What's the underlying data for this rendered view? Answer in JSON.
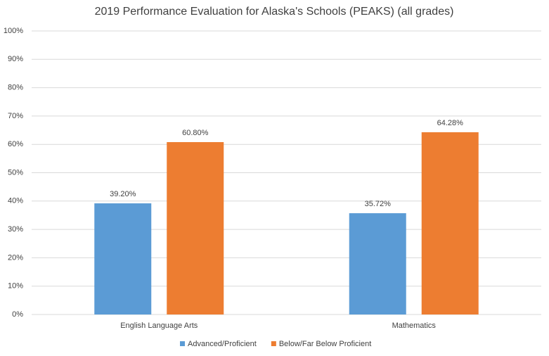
{
  "chart_data": {
    "type": "bar",
    "title": "2019 Performance Evaluation for Alaska's Schools (PEAKS)  (all grades)",
    "categories": [
      "English Language Arts",
      "Mathematics"
    ],
    "series": [
      {
        "name": "Advanced/Proficient",
        "color": "#5b9bd5",
        "values": [
          39.2,
          35.72
        ],
        "value_labels": [
          "39.20%",
          "35.72%"
        ]
      },
      {
        "name": "Below/Far Below Proficient",
        "color": "#ed7d31",
        "values": [
          60.8,
          64.28
        ],
        "value_labels": [
          "60.80%",
          "64.28%"
        ]
      }
    ],
    "ylim": [
      0,
      100
    ],
    "yticks": [
      {
        "value": 0,
        "label": "0%"
      },
      {
        "value": 10,
        "label": "10%"
      },
      {
        "value": 20,
        "label": "20%"
      },
      {
        "value": 30,
        "label": "30%"
      },
      {
        "value": 40,
        "label": "40%"
      },
      {
        "value": 50,
        "label": "50%"
      },
      {
        "value": 60,
        "label": "60%"
      },
      {
        "value": 70,
        "label": "70%"
      },
      {
        "value": 80,
        "label": "80%"
      },
      {
        "value": 90,
        "label": "90%"
      },
      {
        "value": 100,
        "label": "100%"
      }
    ],
    "grid": true,
    "legend": "bottom"
  }
}
